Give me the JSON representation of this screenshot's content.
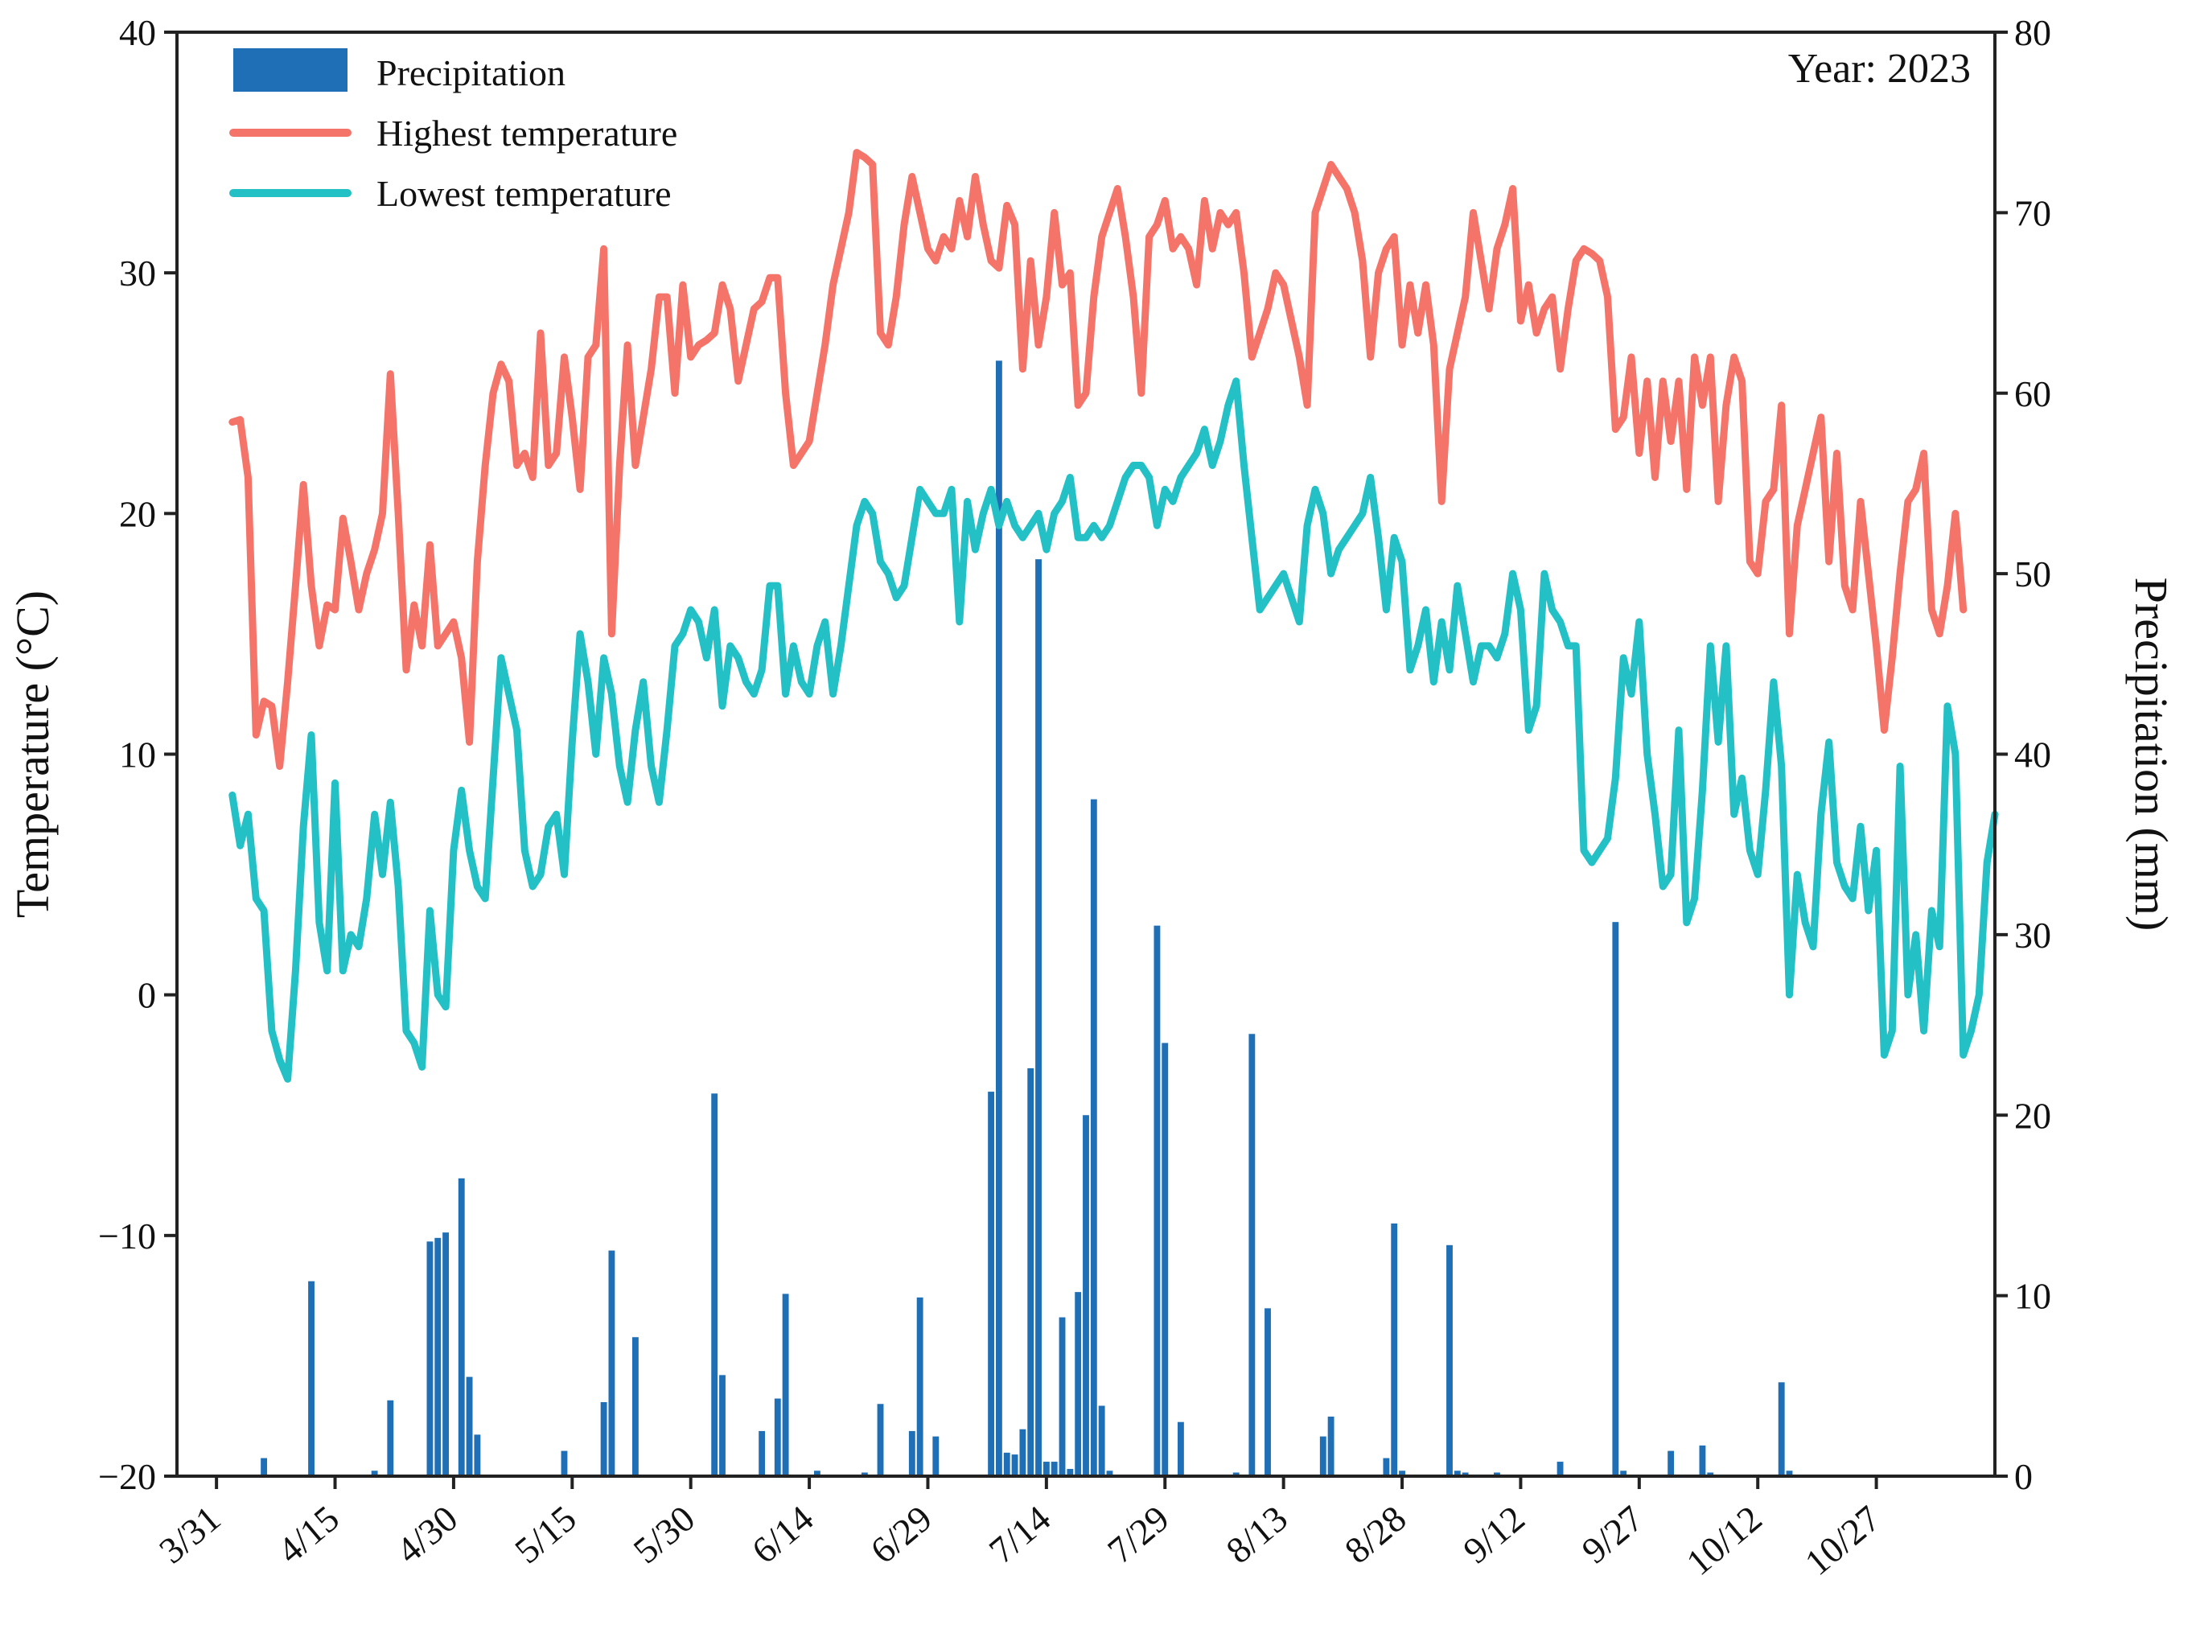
{
  "chart_data": {
    "type": "bar+line",
    "year_label": "Year: 2023",
    "legend": [
      {
        "label": "Precipitation",
        "kind": "bar",
        "color": "#1f6fb7"
      },
      {
        "label": "Highest temperature",
        "kind": "line",
        "color": "#f4746a"
      },
      {
        "label": "Lowest temperature",
        "kind": "line",
        "color": "#23c0c6"
      }
    ],
    "x_axis": {
      "ticks": [
        {
          "label": "3/31",
          "day": 0
        },
        {
          "label": "4/15",
          "day": 15
        },
        {
          "label": "4/30",
          "day": 30
        },
        {
          "label": "5/15",
          "day": 45
        },
        {
          "label": "5/30",
          "day": 60
        },
        {
          "label": "6/14",
          "day": 75
        },
        {
          "label": "6/29",
          "day": 90
        },
        {
          "label": "7/14",
          "day": 105
        },
        {
          "label": "7/29",
          "day": 120
        },
        {
          "label": "8/13",
          "day": 135
        },
        {
          "label": "8/28",
          "day": 150
        },
        {
          "label": "9/12",
          "day": 165
        },
        {
          "label": "9/27",
          "day": 180
        },
        {
          "label": "10/12",
          "day": 195
        },
        {
          "label": "10/27",
          "day": 210
        }
      ],
      "range_days": [
        -5,
        225
      ]
    },
    "y_left": {
      "label": "Temperature (°C)",
      "range": [
        -20,
        40
      ],
      "ticks": [
        "−20",
        "−10",
        "0",
        "10",
        "20",
        "30",
        "40"
      ]
    },
    "y_right": {
      "label": "Precipitation (mm)",
      "range": [
        0,
        80
      ],
      "ticks": [
        "0",
        "10",
        "20",
        "30",
        "40",
        "50",
        "60",
        "70",
        "80"
      ]
    },
    "series": [
      {
        "name": "Highest temperature",
        "start_day": 2,
        "values": [
          23.8,
          23.9,
          21.5,
          10.8,
          12.2,
          12.0,
          9.5,
          13.0,
          17.0,
          21.2,
          17.0,
          14.5,
          16.2,
          16.0,
          19.8,
          18.0,
          16.0,
          17.5,
          18.5,
          20.0,
          25.8,
          20.0,
          13.5,
          16.2,
          14.5,
          18.7,
          14.5,
          15.0,
          15.5,
          14.0,
          10.5,
          18.0,
          22.0,
          25.0,
          26.2,
          25.5,
          22.0,
          22.5,
          21.5,
          27.5,
          22.0,
          22.5,
          26.5,
          24.0,
          21.0,
          26.5,
          27.0,
          31.0,
          15.0,
          22.0,
          27.0,
          22.0,
          24.0,
          26.0,
          29.0,
          29.0,
          25.0,
          29.5,
          26.5,
          27.0,
          27.2,
          27.5,
          29.5,
          28.5,
          25.5,
          27.0,
          28.5,
          28.8,
          29.8,
          29.8,
          25.0,
          22.0,
          22.5,
          23.0,
          25.0,
          27.0,
          29.5,
          31.0,
          32.5,
          35.0,
          34.8,
          34.5,
          27.5,
          27.0,
          29.0,
          32.0,
          34.0,
          32.5,
          31.0,
          30.5,
          31.5,
          31.0,
          33.0,
          31.5,
          34.0,
          32.0,
          30.5,
          30.2,
          32.8,
          32.0,
          26.0,
          30.5,
          27.0,
          29.0,
          32.5,
          29.5,
          30.0,
          24.5,
          25.0,
          29.0,
          31.5,
          32.5,
          33.5,
          31.5,
          29.0,
          25.0,
          31.5,
          32.0,
          33.0,
          31.0,
          31.5,
          31.0,
          29.5,
          33.0,
          31.0,
          32.5,
          32.0,
          32.5,
          30.0,
          26.5,
          27.5,
          28.5,
          30.0,
          29.5,
          28.0,
          26.5,
          24.5,
          32.5,
          33.5,
          34.5,
          34.0,
          33.5,
          32.5,
          30.5,
          26.5,
          30.0,
          31.0,
          31.5,
          27.0,
          29.5,
          27.5,
          29.5,
          27.0,
          20.5,
          26.0,
          27.5,
          29.0,
          32.5,
          30.5,
          28.5,
          31.0,
          32.0,
          33.5,
          28.0,
          29.5,
          27.5,
          28.5,
          29.0,
          26.0,
          28.5,
          30.5,
          31.0,
          30.8,
          30.5,
          29.0,
          23.5,
          24.0,
          26.5,
          22.5,
          25.5,
          21.5,
          25.5,
          23.0,
          25.5,
          21.0,
          26.5,
          24.5,
          26.5,
          20.5,
          24.5,
          26.5,
          25.5,
          18.0,
          17.5,
          20.5,
          21.0,
          24.5,
          15.0,
          19.5,
          21.0,
          22.5,
          24.0,
          18.0,
          22.5,
          17.0,
          16.0,
          20.5,
          17.5,
          14.5,
          11.0,
          14.0,
          17.5,
          20.5,
          21.0,
          22.5,
          16.0,
          15.0,
          17.0,
          20.0,
          16.0
        ]
      },
      {
        "name": "Lowest temperature",
        "start_day": 2,
        "values": [
          8.3,
          6.2,
          7.5,
          4.0,
          3.5,
          -1.5,
          -2.7,
          -3.5,
          1.0,
          7.0,
          10.8,
          3.0,
          1.0,
          8.8,
          1.0,
          2.5,
          2.0,
          4.0,
          7.5,
          5.0,
          8.0,
          4.5,
          -1.5,
          -2.0,
          -3.0,
          3.5,
          0.0,
          -0.5,
          6.0,
          8.5,
          6.0,
          4.5,
          4.0,
          9.0,
          14.0,
          12.5,
          11.0,
          6.0,
          4.5,
          5.0,
          7.0,
          7.5,
          5.0,
          10.5,
          15.0,
          13.0,
          10.0,
          14.0,
          12.5,
          9.5,
          8.0,
          11.0,
          13.0,
          9.5,
          8.0,
          11.0,
          14.5,
          15.0,
          16.0,
          15.5,
          14.0,
          16.0,
          12.0,
          14.5,
          14.0,
          13.0,
          12.5,
          13.5,
          17.0,
          17.0,
          12.5,
          14.5,
          13.0,
          12.5,
          14.5,
          15.5,
          12.5,
          14.5,
          17.0,
          19.5,
          20.5,
          20.0,
          18.0,
          17.5,
          16.5,
          17.0,
          19.0,
          21.0,
          20.5,
          20.0,
          20.0,
          21.0,
          15.5,
          20.5,
          18.5,
          20.0,
          21.0,
          19.5,
          20.5,
          19.5,
          19.0,
          19.5,
          20.0,
          18.5,
          20.0,
          20.5,
          21.5,
          19.0,
          19.0,
          19.5,
          19.0,
          19.5,
          20.5,
          21.5,
          22.0,
          22.0,
          21.5,
          19.5,
          21.0,
          20.5,
          21.5,
          22.0,
          22.5,
          23.5,
          22.0,
          23.0,
          24.5,
          25.5,
          22.0,
          19.0,
          16.0,
          16.5,
          17.0,
          17.5,
          16.5,
          15.5,
          19.5,
          21.0,
          20.0,
          17.5,
          18.5,
          19.0,
          19.5,
          20.0,
          21.5,
          19.0,
          16.0,
          19.0,
          18.0,
          13.5,
          14.5,
          16.0,
          13.0,
          15.5,
          13.5,
          17.0,
          15.0,
          13.0,
          14.5,
          14.5,
          14.0,
          15.0,
          17.5,
          16.0,
          11.0,
          12.0,
          17.5,
          16.0,
          15.5,
          14.5,
          14.5,
          6.0,
          5.5,
          6.0,
          6.5,
          9.0,
          14.0,
          12.5,
          15.5,
          10.0,
          7.5,
          4.5,
          5.0,
          11.0,
          3.0,
          4.0,
          8.5,
          14.5,
          10.5,
          14.5,
          7.5,
          9.0,
          6.0,
          5.0,
          8.5,
          13.0,
          9.5,
          0.0,
          5.0,
          3.0,
          2.0,
          7.5,
          10.5,
          5.5,
          4.5,
          4.0,
          7.0,
          3.5,
          6.0,
          -2.5,
          -1.5,
          9.5,
          0.0,
          2.5,
          -1.5,
          3.5,
          2.0,
          12.0,
          10.0,
          -2.5,
          -1.5,
          0.0,
          5.5,
          7.5
        ]
      }
    ],
    "precipitation": [
      {
        "day": 6,
        "mm": 1.0
      },
      {
        "day": 12,
        "mm": 10.8
      },
      {
        "day": 20,
        "mm": 0.3
      },
      {
        "day": 22,
        "mm": 4.2
      },
      {
        "day": 27,
        "mm": 13.0
      },
      {
        "day": 28,
        "mm": 13.2
      },
      {
        "day": 29,
        "mm": 13.5
      },
      {
        "day": 31,
        "mm": 16.5
      },
      {
        "day": 32,
        "mm": 5.5
      },
      {
        "day": 33,
        "mm": 2.3
      },
      {
        "day": 44,
        "mm": 1.4
      },
      {
        "day": 49,
        "mm": 4.1
      },
      {
        "day": 50,
        "mm": 12.5
      },
      {
        "day": 53,
        "mm": 7.7
      },
      {
        "day": 63,
        "mm": 21.2
      },
      {
        "day": 64,
        "mm": 5.6
      },
      {
        "day": 69,
        "mm": 2.5
      },
      {
        "day": 71,
        "mm": 4.3
      },
      {
        "day": 72,
        "mm": 10.1
      },
      {
        "day": 76,
        "mm": 0.3
      },
      {
        "day": 82,
        "mm": 0.2
      },
      {
        "day": 84,
        "mm": 4.0
      },
      {
        "day": 88,
        "mm": 2.5
      },
      {
        "day": 89,
        "mm": 9.9
      },
      {
        "day": 91,
        "mm": 2.2
      },
      {
        "day": 98,
        "mm": 21.3
      },
      {
        "day": 99,
        "mm": 61.8
      },
      {
        "day": 100,
        "mm": 1.3
      },
      {
        "day": 101,
        "mm": 1.2
      },
      {
        "day": 102,
        "mm": 2.6
      },
      {
        "day": 103,
        "mm": 22.6
      },
      {
        "day": 104,
        "mm": 50.8
      },
      {
        "day": 105,
        "mm": 0.8
      },
      {
        "day": 106,
        "mm": 0.8
      },
      {
        "day": 107,
        "mm": 8.8
      },
      {
        "day": 108,
        "mm": 0.4
      },
      {
        "day": 109,
        "mm": 10.2
      },
      {
        "day": 110,
        "mm": 20.0
      },
      {
        "day": 111,
        "mm": 37.5
      },
      {
        "day": 112,
        "mm": 3.9
      },
      {
        "day": 113,
        "mm": 0.3
      },
      {
        "day": 119,
        "mm": 30.5
      },
      {
        "day": 120,
        "mm": 24.0
      },
      {
        "day": 122,
        "mm": 3.0
      },
      {
        "day": 129,
        "mm": 0.2
      },
      {
        "day": 131,
        "mm": 24.5
      },
      {
        "day": 133,
        "mm": 9.3
      },
      {
        "day": 140,
        "mm": 2.2
      },
      {
        "day": 141,
        "mm": 3.3
      },
      {
        "day": 148,
        "mm": 1.0
      },
      {
        "day": 149,
        "mm": 14.0
      },
      {
        "day": 150,
        "mm": 0.3
      },
      {
        "day": 156,
        "mm": 12.8
      },
      {
        "day": 157,
        "mm": 0.3
      },
      {
        "day": 158,
        "mm": 0.2
      },
      {
        "day": 162,
        "mm": 0.2
      },
      {
        "day": 170,
        "mm": 0.8
      },
      {
        "day": 177,
        "mm": 30.7
      },
      {
        "day": 178,
        "mm": 0.3
      },
      {
        "day": 184,
        "mm": 1.4
      },
      {
        "day": 188,
        "mm": 1.7
      },
      {
        "day": 189,
        "mm": 0.2
      },
      {
        "day": 198,
        "mm": 5.2
      },
      {
        "day": 199,
        "mm": 0.3
      }
    ]
  }
}
